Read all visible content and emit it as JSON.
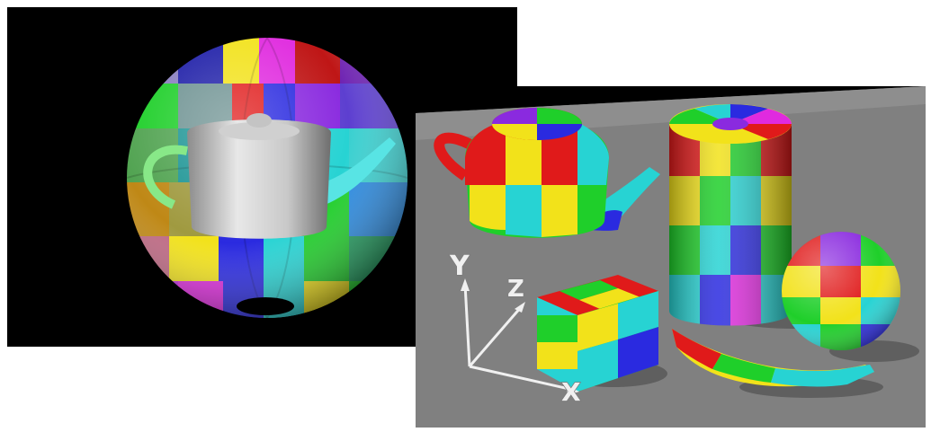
{
  "scene_left": {
    "subject": "transparent-checkered-sphere-with-teapot",
    "colors": [
      "#e01a1a",
      "#f2e21a",
      "#1fcf2a",
      "#27d3d3",
      "#2a2ae0",
      "#8a2adf",
      "#e02adf",
      "#ff8a1a"
    ]
  },
  "scene_right": {
    "subject": "checkered-primitives-on-plane",
    "floor_color": "#808080",
    "axis_labels": {
      "x": "X",
      "y": "Y",
      "z": "Z"
    }
  }
}
